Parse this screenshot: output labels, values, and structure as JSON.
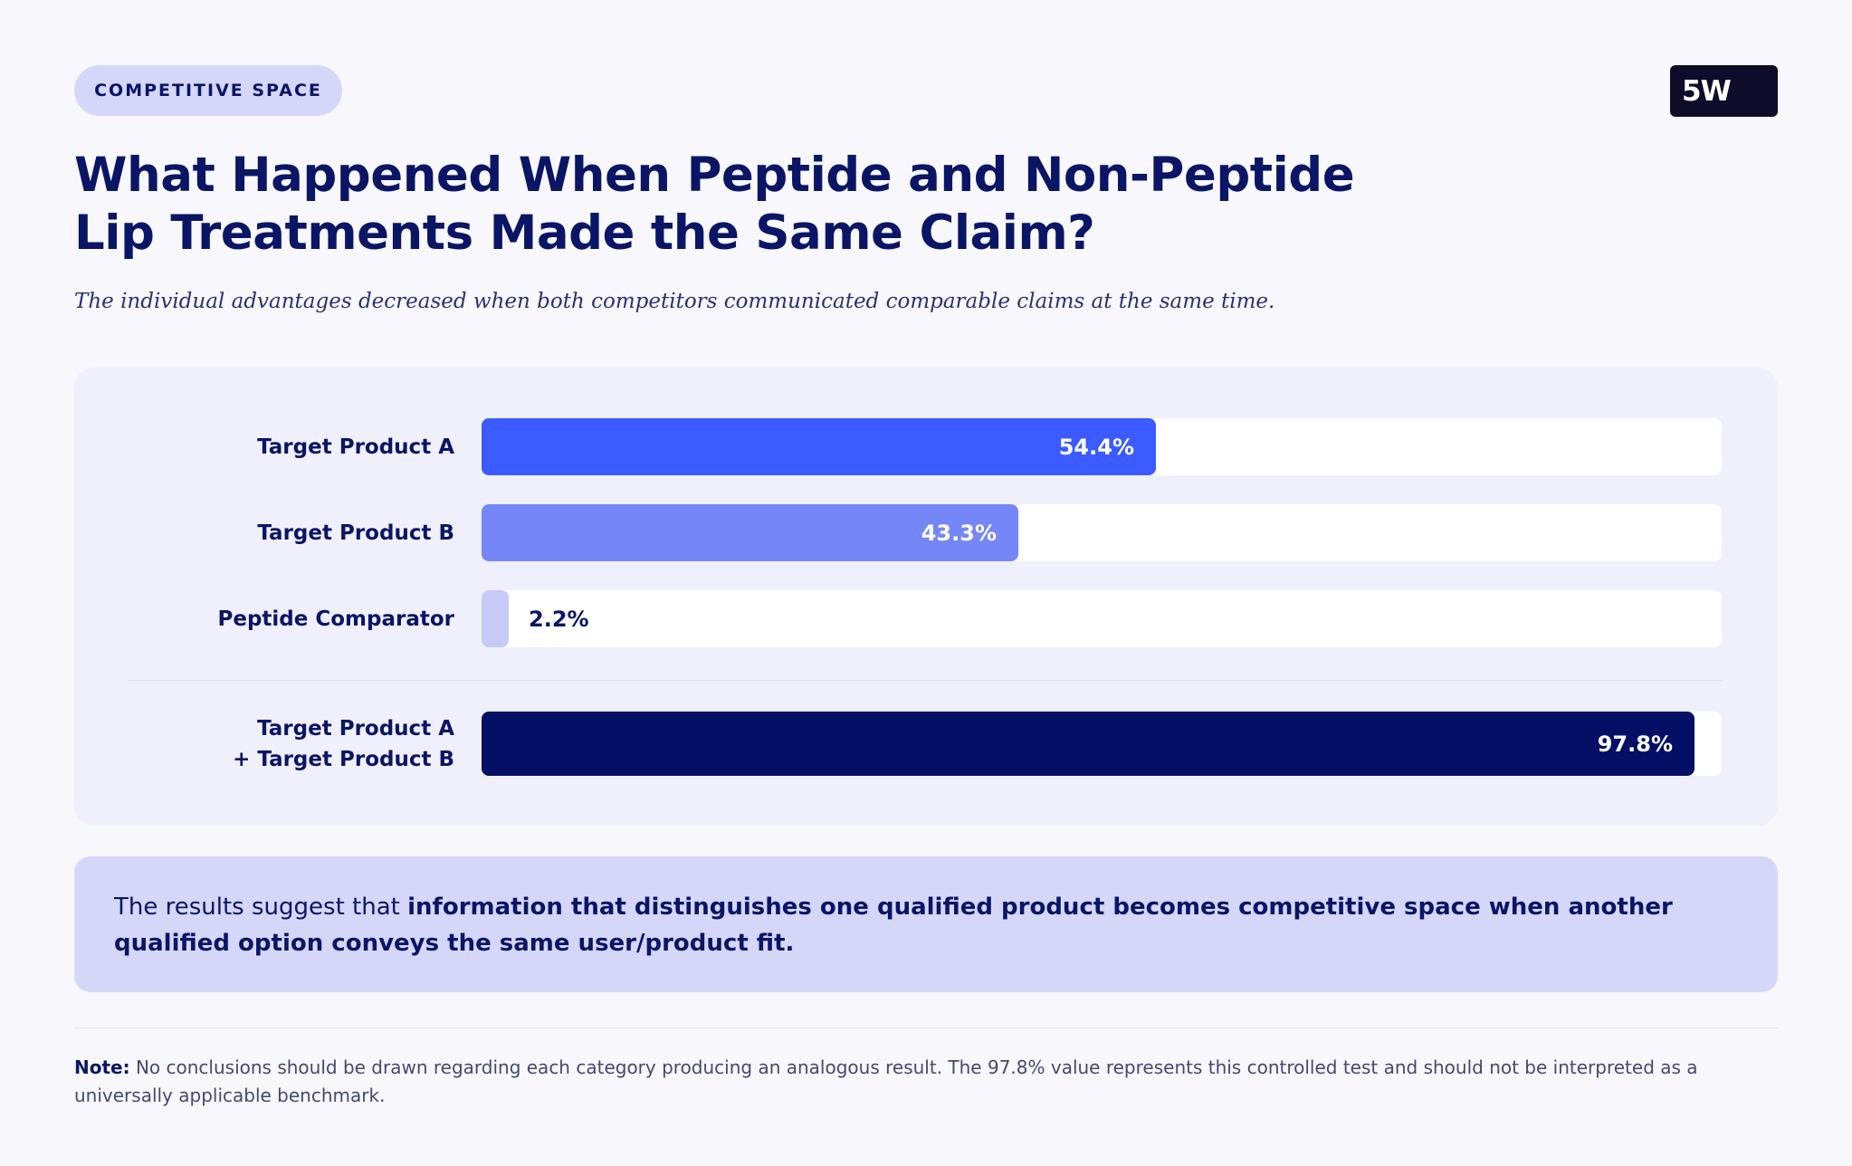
{
  "header": {
    "tag": "COMPETITIVE SPACE",
    "logo": "5W",
    "title": "What Happened When Peptide and Non-Peptide Lip Treatments Made the Same Claim?",
    "subtitle": "The individual advantages decreased when both competitors communicated comparable claims at the same time."
  },
  "chart_data": {
    "type": "bar",
    "orientation": "horizontal",
    "xlim": [
      0,
      100
    ],
    "categories": [
      "Target Product A",
      "Target Product B",
      "Peptide Comparator",
      "Target Product A + Target Product B"
    ],
    "values": [
      54.4,
      43.3,
      2.2,
      97.8
    ],
    "value_labels": [
      "54.4%",
      "43.3%",
      "2.2%",
      "97.8%"
    ],
    "label_lines": [
      [
        "Target Product A"
      ],
      [
        "Target Product B"
      ],
      [
        "Peptide Comparator"
      ],
      [
        "Target Product A",
        "+ Target Product B"
      ]
    ],
    "colors": [
      "#3b5bff",
      "#7587f7",
      "#c5cbf6",
      "#050f66"
    ]
  },
  "insight": {
    "lead": "The results suggest that ",
    "emphasis": "information that distinguishes one qualified product becomes competitive space when another qualified option conveys the same user/product fit."
  },
  "note": {
    "label": "Note:",
    "text": " No conclusions should be drawn regarding each category producing an analogous result. The 97.8% value represents this controlled test and should not be interpreted as a universally applicable benchmark."
  }
}
